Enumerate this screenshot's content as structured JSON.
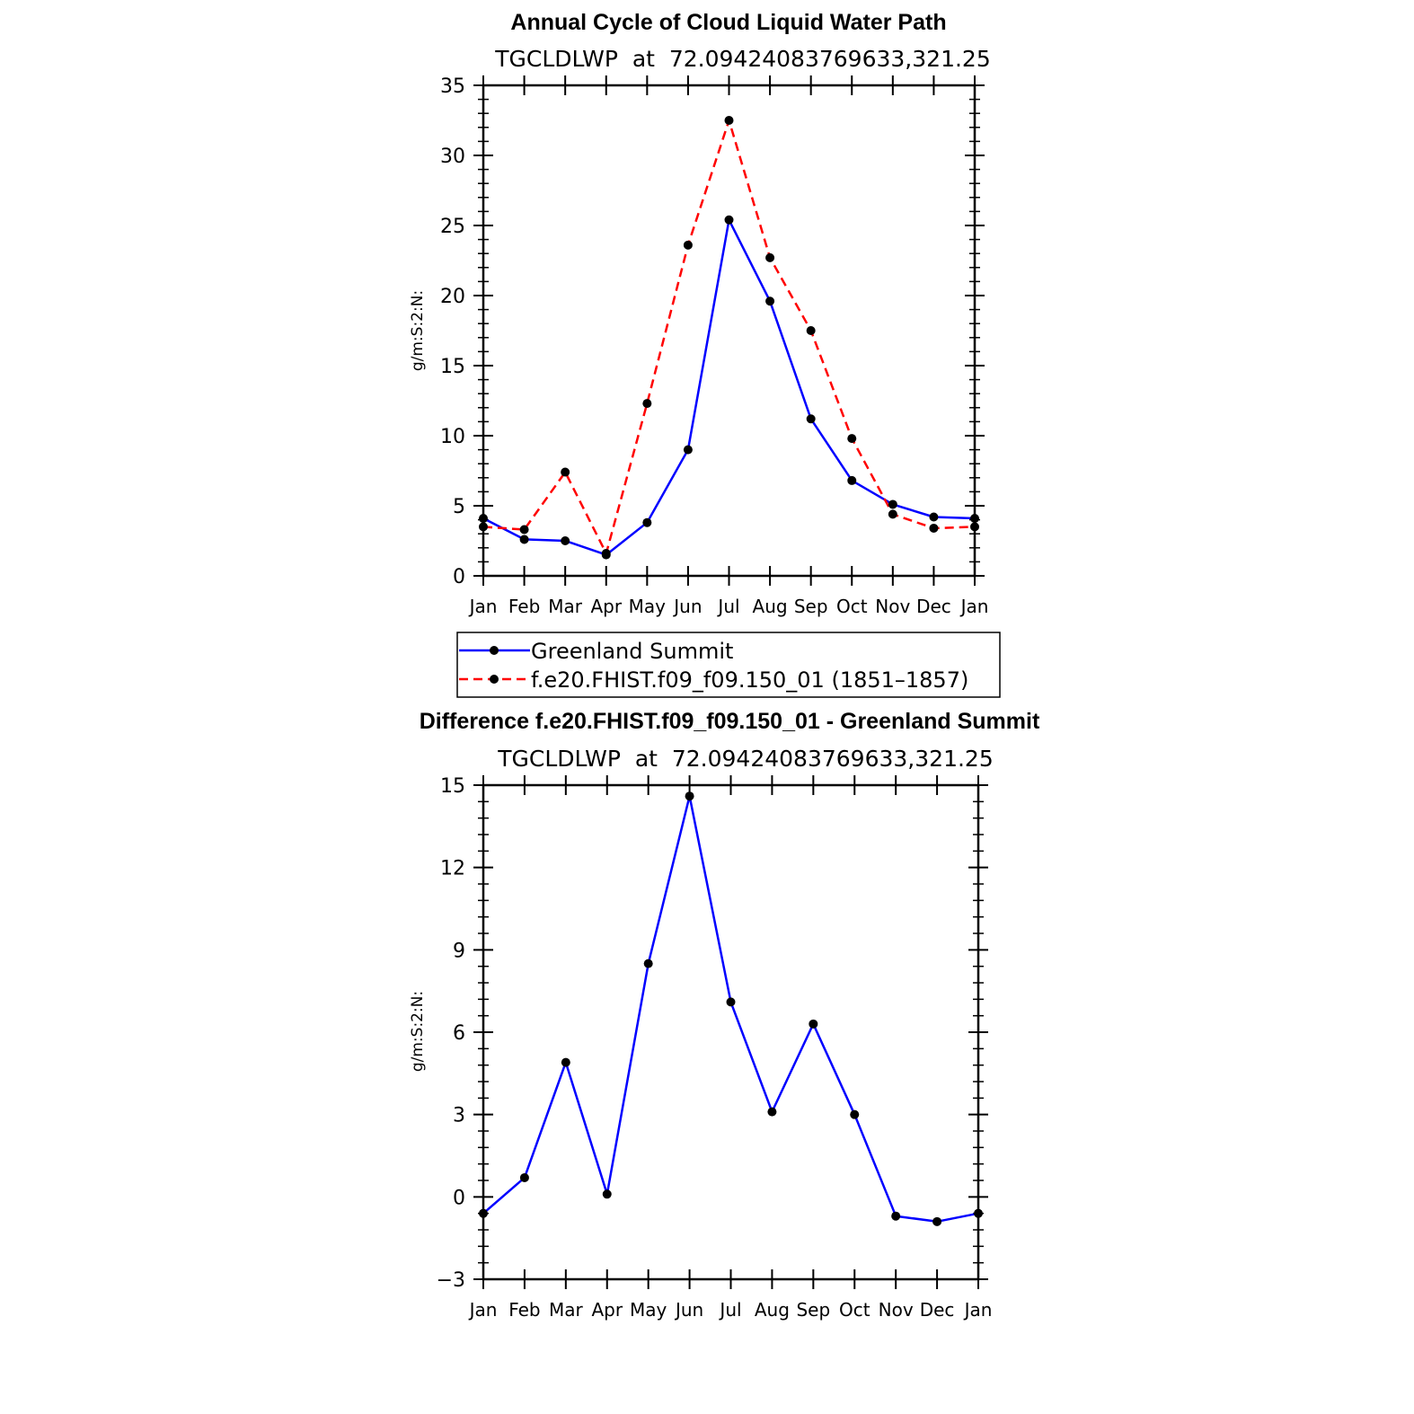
{
  "chart_data": [
    {
      "type": "line",
      "title": "Annual Cycle of Cloud Liquid Water Path",
      "subtitle": "TGCLDLWP  at  72.09424083769633,321.25",
      "xlabel": "",
      "ylabel": "g/m:S:2:N:",
      "categories": [
        "Jan",
        "Feb",
        "Mar",
        "Apr",
        "May",
        "Jun",
        "Jul",
        "Aug",
        "Sep",
        "Oct",
        "Nov",
        "Dec",
        "Jan"
      ],
      "ylim": [
        0,
        35
      ],
      "yticks": [
        "0",
        "5",
        "10",
        "15",
        "20",
        "25",
        "30",
        "35"
      ],
      "legend_position": "bottom",
      "series": [
        {
          "name": "Greenland Summit",
          "color": "#0000ff",
          "dash": "solid",
          "values": [
            4.1,
            2.6,
            2.5,
            1.5,
            3.8,
            9.0,
            25.4,
            19.6,
            11.2,
            6.8,
            5.1,
            4.2,
            4.1
          ]
        },
        {
          "name": "f.e20.FHIST.f09_f09.150_01 (1851–1857)",
          "color": "#ff0000",
          "dash": "dashed",
          "values": [
            3.5,
            3.3,
            7.4,
            1.6,
            12.3,
            23.6,
            32.5,
            22.7,
            17.5,
            9.8,
            4.4,
            3.4,
            3.5
          ]
        }
      ]
    },
    {
      "type": "line",
      "title": "Difference f.e20.FHIST.f09_f09.150_01 - Greenland Summit",
      "subtitle": "TGCLDLWP  at  72.09424083769633,321.25",
      "xlabel": "",
      "ylabel": "g/m:S:2:N:",
      "categories": [
        "Jan",
        "Feb",
        "Mar",
        "Apr",
        "May",
        "Jun",
        "Jul",
        "Aug",
        "Sep",
        "Oct",
        "Nov",
        "Dec",
        "Jan"
      ],
      "ylim": [
        -3,
        15
      ],
      "yticks": [
        "−3",
        "0",
        "3",
        "6",
        "9",
        "12",
        "15"
      ],
      "series": [
        {
          "name": "",
          "color": "#0000ff",
          "dash": "solid",
          "values": [
            -0.6,
            0.7,
            4.9,
            0.1,
            8.5,
            14.6,
            7.1,
            3.1,
            6.3,
            3.0,
            -0.7,
            -0.9,
            -0.6
          ]
        }
      ]
    }
  ]
}
